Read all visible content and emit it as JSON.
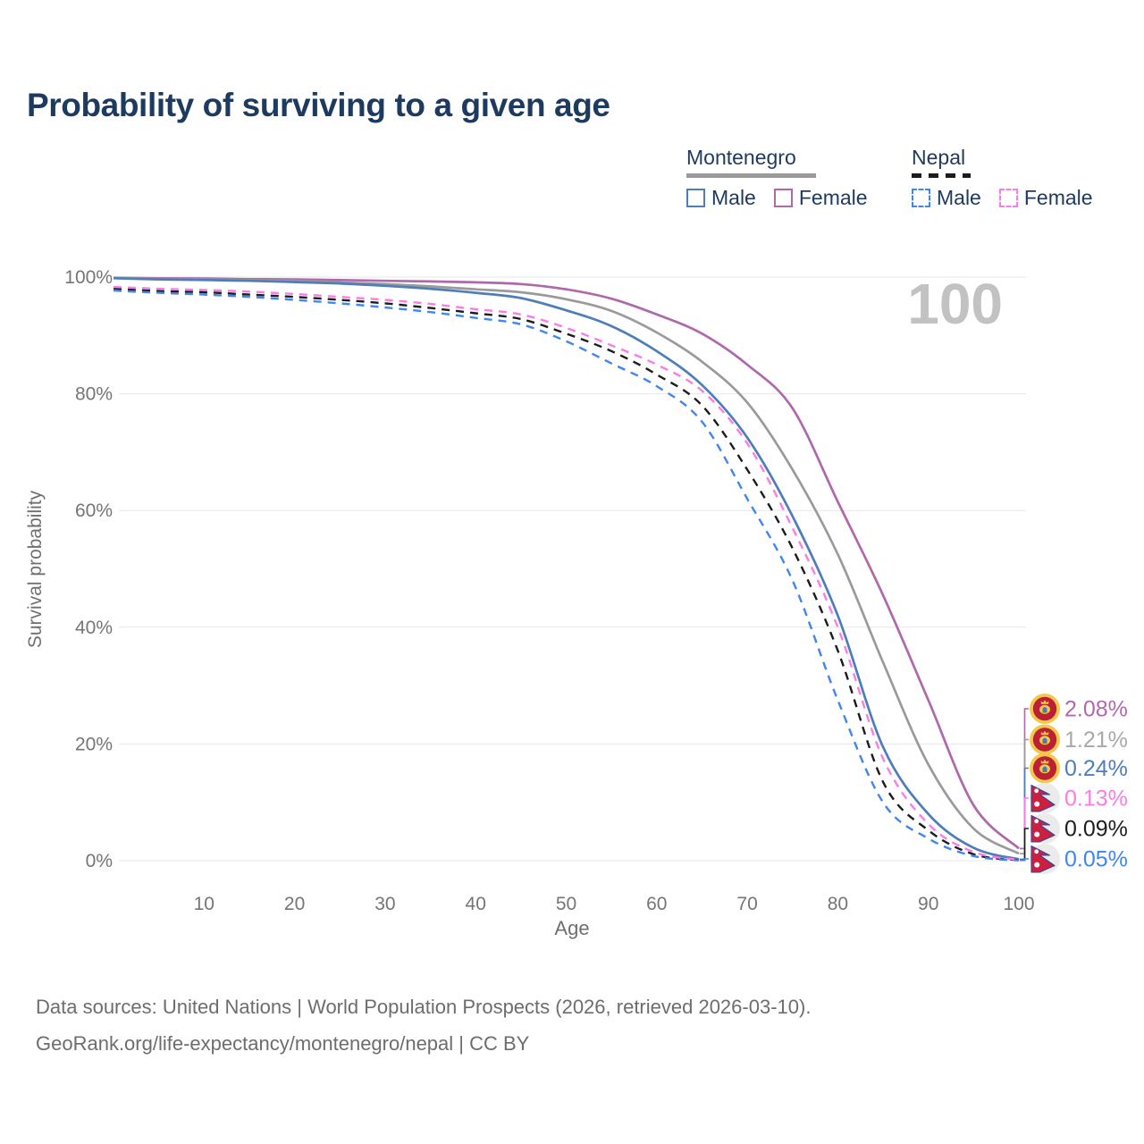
{
  "title": "Probability of surviving to a given age",
  "legend": {
    "groups": [
      {
        "title": "Montenegro",
        "line_style": "solid",
        "line_color": "#9a9a9a",
        "items": [
          {
            "label": "Male",
            "color": "#4d7eba",
            "style": "solid"
          },
          {
            "label": "Female",
            "color": "#ae68ab",
            "style": "solid"
          }
        ]
      },
      {
        "title": "Nepal",
        "line_style": "dashed",
        "line_color": "#1c1c1c",
        "items": [
          {
            "label": "Male",
            "color": "#3f86f0",
            "style": "dashed"
          },
          {
            "label": "Female",
            "color": "#fb7ce5",
            "style": "dashed"
          }
        ]
      }
    ]
  },
  "watermark": "100",
  "chart_data": {
    "type": "line",
    "title": "Probability of surviving to a given age",
    "xlabel": "Age",
    "ylabel": "Survival probability",
    "xlim": [
      0,
      100
    ],
    "ylim": [
      0,
      100
    ],
    "grid": true,
    "x_ticks": [
      10,
      20,
      30,
      40,
      50,
      60,
      70,
      80,
      90,
      100
    ],
    "y_ticks": [
      "0%",
      "20%",
      "40%",
      "60%",
      "80%",
      "100%"
    ],
    "legend_position": "top-right",
    "ages": [
      0,
      5,
      10,
      15,
      20,
      25,
      30,
      35,
      40,
      45,
      50,
      55,
      60,
      65,
      70,
      75,
      80,
      85,
      90,
      95,
      100
    ],
    "series": [
      {
        "name": "Montenegro Female",
        "country": "Montenegro",
        "sex": "Female",
        "line": "solid",
        "color": "#ae68ab",
        "label_color": "#b268ae",
        "end_label": "2.08%",
        "flag": "montenegro",
        "values": [
          99.9,
          99.8,
          99.75,
          99.65,
          99.6,
          99.5,
          99.35,
          99.25,
          99.1,
          98.8,
          97.9,
          96.3,
          93.6,
          90.3,
          85.0,
          77.5,
          61.5,
          45.5,
          27.5,
          9.5,
          2.08
        ]
      },
      {
        "name": "Montenegro (both sexes)",
        "country": "Montenegro",
        "sex": "Both sexes",
        "line": "solid",
        "color": "#9a9a9a",
        "label_color": "#a9a9a9",
        "end_label": "1.21%",
        "flag": "montenegro",
        "values": [
          99.85,
          99.7,
          99.6,
          99.5,
          99.35,
          99.1,
          98.8,
          98.4,
          97.9,
          97.4,
          96.2,
          94.2,
          90.5,
          85.5,
          78.5,
          67.0,
          52.5,
          34.0,
          16.5,
          5.5,
          1.21
        ]
      },
      {
        "name": "Montenegro Male",
        "country": "Montenegro",
        "sex": "Male",
        "line": "solid",
        "color": "#4d7eba",
        "label_color": "#4d7eba",
        "end_label": "0.24%",
        "flag": "montenegro",
        "values": [
          99.8,
          99.6,
          99.5,
          99.35,
          99.15,
          98.9,
          98.5,
          98.0,
          97.3,
          96.4,
          94.3,
          91.6,
          87.3,
          81.5,
          72.5,
          59.0,
          42.0,
          19.5,
          8.0,
          2.2,
          0.24
        ]
      },
      {
        "name": "Nepal Female",
        "country": "Nepal",
        "sex": "Female",
        "line": "dashed",
        "color": "#fb7ce5",
        "label_color": "#fb7ce5",
        "end_label": "0.13%",
        "flag": "nepal",
        "values": [
          98.3,
          98.0,
          97.8,
          97.5,
          97.1,
          96.6,
          96.1,
          95.4,
          94.5,
          93.6,
          91.3,
          88.3,
          85.0,
          80.5,
          71.5,
          57.0,
          40.0,
          17.5,
          6.3,
          1.5,
          0.13
        ]
      },
      {
        "name": "Nepal (both sexes)",
        "country": "Nepal",
        "sex": "Both sexes",
        "line": "dashed",
        "color": "#1c1c1c",
        "label_color": "#1d1d1d",
        "end_label": "0.09%",
        "flag": "nepal",
        "values": [
          98.0,
          97.6,
          97.4,
          97.0,
          96.6,
          96.1,
          95.5,
          94.7,
          93.8,
          92.8,
          90.3,
          87.3,
          83.3,
          78.0,
          67.0,
          53.5,
          36.0,
          13.5,
          5.2,
          1.1,
          0.09
        ]
      },
      {
        "name": "Nepal Male",
        "country": "Nepal",
        "sex": "Male",
        "line": "dashed",
        "color": "#3f86f0",
        "label_color": "#3f86f0",
        "end_label": "0.05%",
        "flag": "nepal",
        "values": [
          97.7,
          97.3,
          97.0,
          96.6,
          96.1,
          95.5,
          94.8,
          94.0,
          93.0,
          91.9,
          89.0,
          85.2,
          81.3,
          75.2,
          62.0,
          48.0,
          27.5,
          10.0,
          3.8,
          0.8,
          0.05
        ]
      }
    ]
  },
  "footer": {
    "line1": "Data sources: United Nations | World Population Prospects (2026, retrieved 2026-03-10).",
    "line2": "GeoRank.org/life-expectancy/montenegro/nepal | CC BY"
  }
}
